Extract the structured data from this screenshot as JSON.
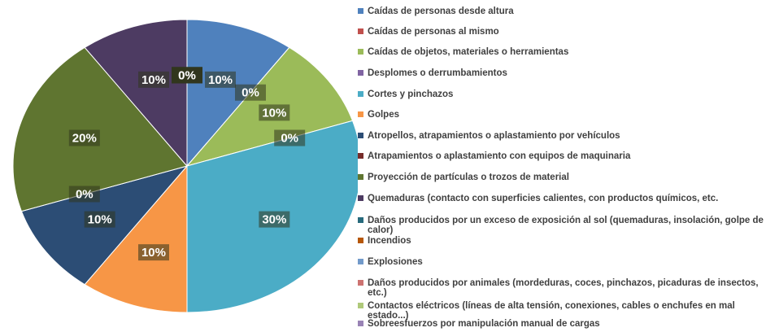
{
  "chart_data": {
    "type": "pie",
    "categories": [
      "Caídas de personas desde altura",
      "Caídas de personas al mismo",
      "Caídas de objetos, materiales o herramientas",
      "Desplomes o derrumbamientos",
      "Cortes y pinchazos",
      "Golpes",
      "Atropellos, atrapamientos o aplastamiento por vehículos",
      "Atrapamientos o aplastamiento con equipos de maquinaria",
      "Proyección de partículas o trozos de material",
      "Quemaduras (contacto con superficies calientes, con productos químicos, etc.",
      "Daños producidos por un exceso de exposición al sol (quemaduras, insolación, golpe de calor)",
      "Incendios",
      "Explosiones",
      "Daños producidos por animales (mordeduras, coces, pinchazos, picaduras de insectos, etc.)",
      "Contactos eléctricos (líneas de alta tensión, conexiones, cables o enchufes en mal estado...)",
      "Sobreesfuerzos por manipulación manual de cargas"
    ],
    "values": [
      10,
      0,
      10,
      0,
      30,
      10,
      10,
      0,
      20,
      10,
      0,
      0,
      0,
      0,
      0,
      0
    ],
    "value_labels": [
      "10%",
      "0%",
      "10%",
      "0%",
      "30%",
      "10%",
      "10%",
      "0%",
      "20%",
      "10%",
      "0%",
      "0%",
      "0%",
      "0%",
      "0%",
      "0%"
    ],
    "colors": [
      "#4f81bd",
      "#c0504d",
      "#9bbb59",
      "#8064a2",
      "#4bacc6",
      "#f79646",
      "#2c4d75",
      "#772c2a",
      "#5f7530",
      "#4d3b62",
      "#276a7c",
      "#b65708",
      "#729aca",
      "#cd7371",
      "#afc97a",
      "#9983b5"
    ]
  }
}
